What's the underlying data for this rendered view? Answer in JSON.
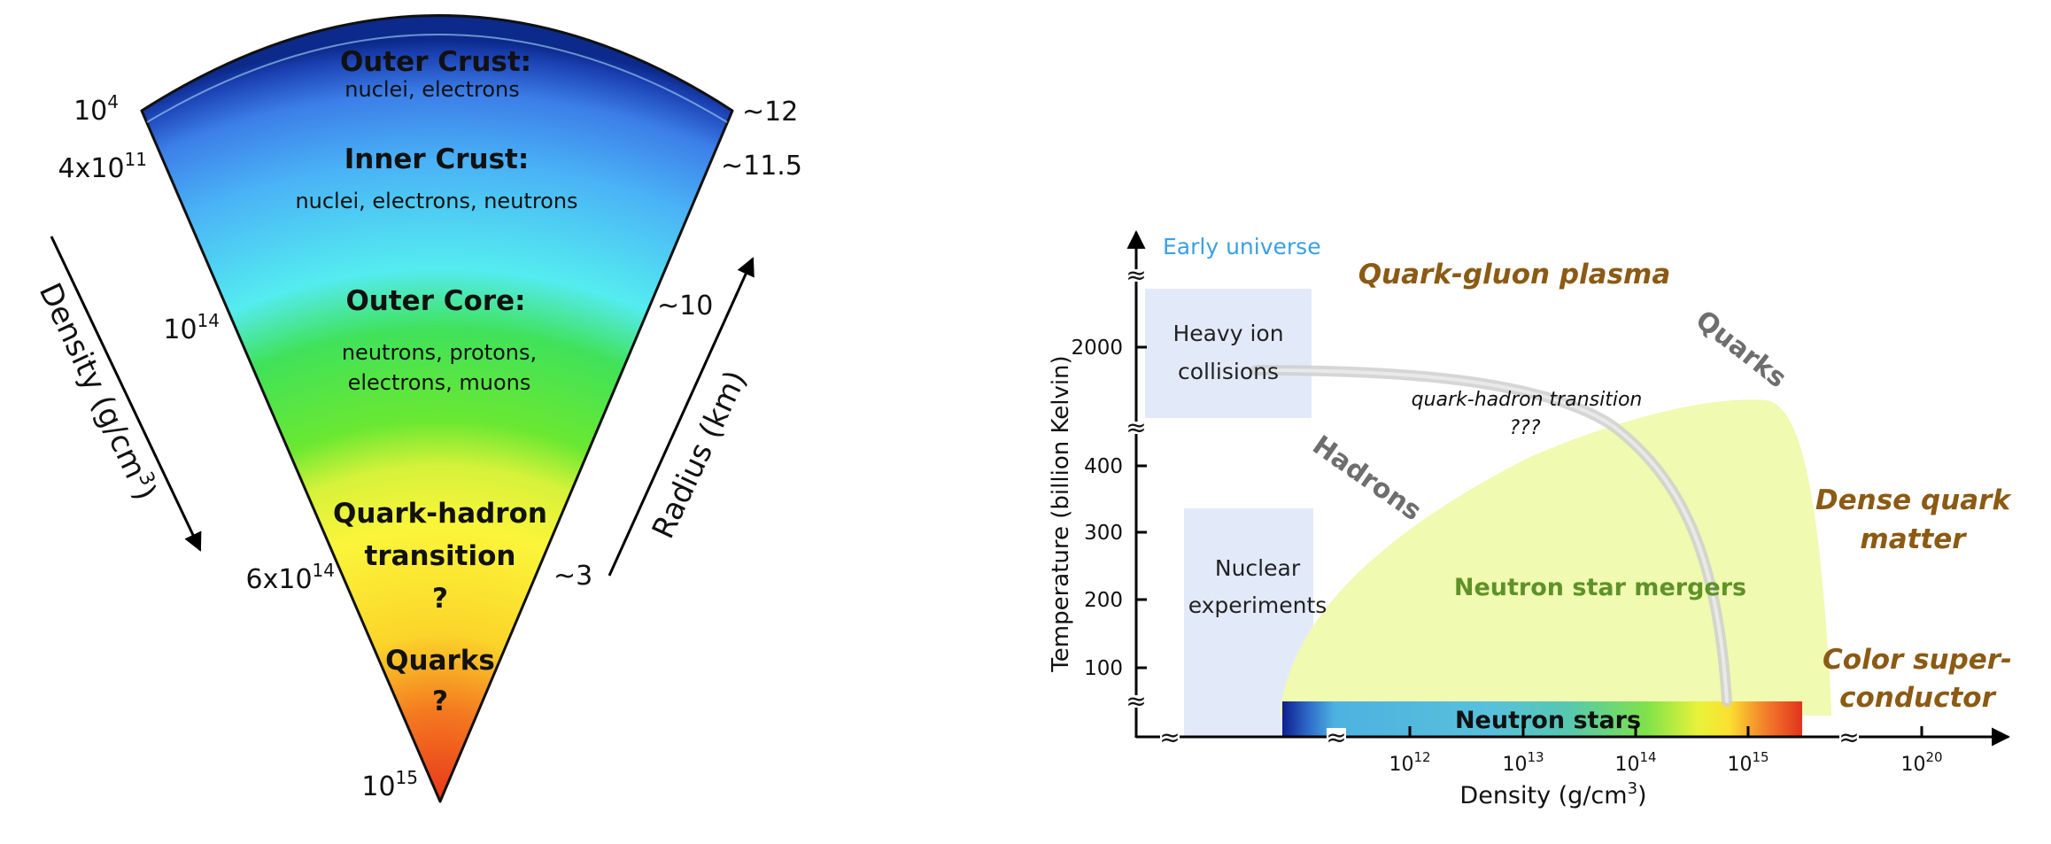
{
  "left_panel": {
    "layers": {
      "outer_crust_title": "Outer Crust:",
      "outer_crust_desc": "nuclei, electrons",
      "inner_crust_title": "Inner Crust:",
      "inner_crust_desc": "nuclei, electrons, neutrons",
      "outer_core_title": "Outer Core:",
      "outer_core_desc_1": "neutrons, protons,",
      "outer_core_desc_2": "electrons, muons",
      "transition_1": "Quark-hadron",
      "transition_2": "transition",
      "transition_3": "?",
      "quarks_1": "Quarks",
      "quarks_2": "?"
    },
    "density_labels": [
      {
        "mant": "10",
        "exp": "4"
      },
      {
        "mant": "4x10",
        "exp": "11"
      },
      {
        "mant": "10",
        "exp": "14"
      },
      {
        "mant": "6x10",
        "exp": "14"
      },
      {
        "mant": "10",
        "exp": "15"
      }
    ],
    "radius_labels": [
      "~12",
      "~11.5",
      "~10",
      "~3"
    ],
    "density_axis": {
      "pre": "Density (g/cm",
      "exp": "3",
      "post": ")"
    },
    "radius_axis": "Radius (km)"
  },
  "right_panel": {
    "early_universe": "Early universe",
    "qgp": "Quark-gluon plasma",
    "heavy_ion_1": "Heavy ion",
    "heavy_ion_2": "collisions",
    "nuclear_1": "Nuclear",
    "nuclear_2": "experiments",
    "quarks": "Quarks",
    "hadrons": "Hadrons",
    "transition_1": "quark-hadron transition",
    "transition_2": "???",
    "mergers": "Neutron star mergers",
    "neutron_stars": "Neutron stars",
    "dense_1": "Dense quark",
    "dense_2": "matter",
    "color_1": "Color super-",
    "color_2": "conductor",
    "y_axis_title": "Temperature (billion Kelvin)",
    "x_axis": {
      "pre": "Density (g/cm",
      "exp": "3",
      "post": ")"
    },
    "y_ticks": [
      "2000",
      "400",
      "300",
      "200",
      "100"
    ],
    "x_ticks": [
      {
        "mant": "10",
        "exp": "12"
      },
      {
        "mant": "10",
        "exp": "13"
      },
      {
        "mant": "10",
        "exp": "14"
      },
      {
        "mant": "10",
        "exp": "15"
      },
      {
        "mant": "10",
        "exp": "20"
      }
    ],
    "break_mark": "≈",
    "colors": {
      "brown_label": "#8b5a14",
      "gray_label": "#6e6e6e",
      "mergers_green": "#5e9228",
      "early_blue": "#3aa0e0",
      "region_yellow": "#f0fab0",
      "box_blue": "#e2eafa"
    }
  }
}
